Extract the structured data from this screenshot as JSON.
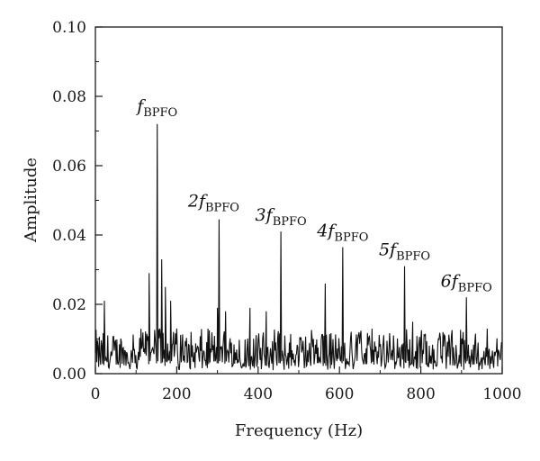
{
  "chart_data": {
    "type": "line",
    "xlabel": "Frequency (Hz)",
    "ylabel": "Amplitude",
    "xlim": [
      0,
      1000
    ],
    "ylim": [
      0,
      0.1
    ],
    "xticks": [
      "0",
      "200",
      "400",
      "600",
      "800",
      "1000"
    ],
    "yticks": [
      "0.00",
      "0.02",
      "0.04",
      "0.06",
      "0.08",
      "0.10"
    ],
    "grid": false,
    "legend": "none",
    "line_color": "#111111",
    "peaks": [
      {
        "x": 152,
        "y": 0.072
      },
      {
        "x": 304,
        "y": 0.0445
      },
      {
        "x": 456,
        "y": 0.041
      },
      {
        "x": 608,
        "y": 0.0365
      },
      {
        "x": 760,
        "y": 0.031
      },
      {
        "x": 912,
        "y": 0.022
      }
    ],
    "secondary_peaks": [
      {
        "x": 132,
        "y": 0.029
      },
      {
        "x": 163,
        "y": 0.033
      },
      {
        "x": 172,
        "y": 0.025
      },
      {
        "x": 185,
        "y": 0.021
      },
      {
        "x": 22,
        "y": 0.021
      },
      {
        "x": 565,
        "y": 0.026
      },
      {
        "x": 320,
        "y": 0.018
      },
      {
        "x": 380,
        "y": 0.019
      },
      {
        "x": 420,
        "y": 0.018
      },
      {
        "x": 300,
        "y": 0.019
      },
      {
        "x": 780,
        "y": 0.015
      },
      {
        "x": 680,
        "y": 0.013
      }
    ],
    "noise_floor": {
      "mean": 0.006,
      "max": 0.013
    },
    "annotations": [
      {
        "x": 152,
        "y": 0.072,
        "prefix": "",
        "main": "f",
        "sub": "BPFO"
      },
      {
        "x": 304,
        "y": 0.0445,
        "prefix": "2",
        "main": "f",
        "sub": "BPFO"
      },
      {
        "x": 456,
        "y": 0.041,
        "prefix": "3",
        "main": "f",
        "sub": "BPFO"
      },
      {
        "x": 608,
        "y": 0.0365,
        "prefix": "4",
        "main": "f",
        "sub": "BPFO"
      },
      {
        "x": 760,
        "y": 0.031,
        "prefix": "5",
        "main": "f",
        "sub": "BPFO"
      },
      {
        "x": 912,
        "y": 0.022,
        "prefix": "6",
        "main": "f",
        "sub": "BPFO"
      }
    ]
  }
}
